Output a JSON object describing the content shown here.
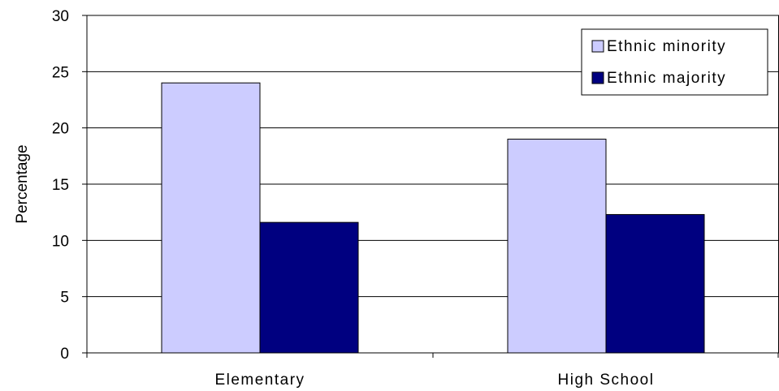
{
  "chart_data": {
    "type": "bar",
    "categories": [
      "Elementary",
      "High School"
    ],
    "series": [
      {
        "name": "Ethnic minority",
        "values": [
          24,
          19
        ],
        "color": "#ccccff"
      },
      {
        "name": "Ethnic majority",
        "values": [
          11.6,
          12.3
        ],
        "color": "#000080"
      }
    ],
    "title": "",
    "xlabel": "",
    "ylabel": "Percentage",
    "ylim": [
      0,
      30
    ],
    "yticks": [
      0,
      5,
      10,
      15,
      20,
      25,
      30
    ],
    "grid": true,
    "legend_position": "top-right"
  }
}
